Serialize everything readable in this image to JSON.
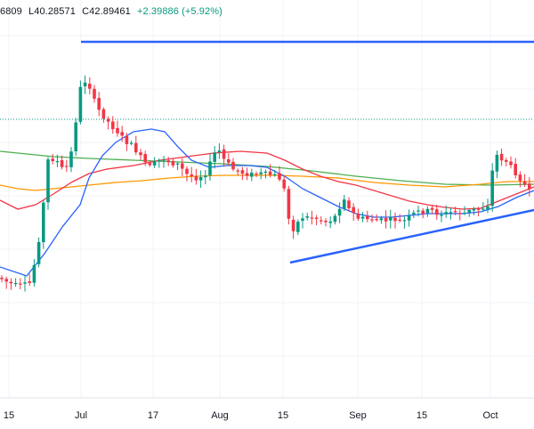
{
  "ohlc": {
    "open_partial": "6809",
    "low": "L40.28571",
    "close": "C42.89461",
    "change": "+2.39886 (+5.92%)"
  },
  "colors": {
    "up": "#089981",
    "down": "#f23645",
    "trendline": "#2962ff",
    "ma_fast": "#2962ff",
    "ma_mid": "#f23645",
    "ma_slow": "#ff9800",
    "ma_long": "#4caf50",
    "dotted_level": "#089981"
  },
  "x_axis": {
    "labels": [
      "15",
      "Jul",
      "17",
      "Aug",
      "15",
      "Sep",
      "15",
      "Oct"
    ]
  },
  "chart_data": {
    "type": "candlestick",
    "title": "",
    "xlabel": "",
    "ylabel": "",
    "series": [],
    "overlays": [
      "moving-average-fast",
      "moving-average-medium",
      "moving-average-slow",
      "moving-average-long",
      "horizontal-trendline",
      "ascending-trendline",
      "dotted-price-level"
    ],
    "grid": true
  }
}
